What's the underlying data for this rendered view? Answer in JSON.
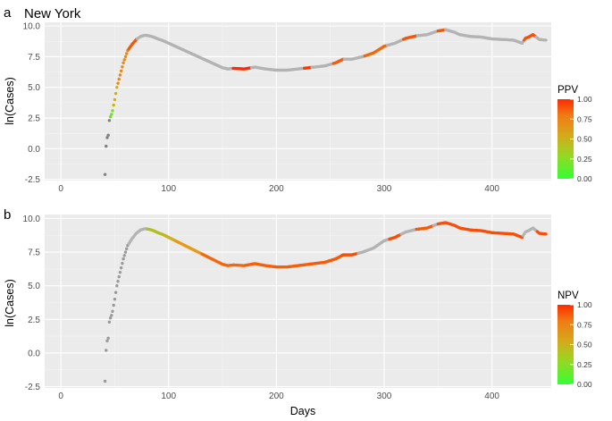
{
  "figure": {
    "title": "New York",
    "xlabel": "Days"
  },
  "colors": {
    "panel_bg": "#ebebeb",
    "grid_major": "#ffffff",
    "grid_minor": "#f4f4f4",
    "neutral": "#b3b3b3",
    "neutral_dark": "#808080",
    "scale_low": "#33ff33",
    "scale_mid": "#e6a51a",
    "scale_high": "#ff2a00"
  },
  "chart_data": [
    {
      "type": "scatter",
      "panel": "a",
      "ylabel": "ln(Cases)",
      "legend_title": "PPV",
      "legend_ticks": [
        "0.00",
        "0.25",
        "0.50",
        "0.75",
        "1.00"
      ],
      "xlim": [
        -15,
        455
      ],
      "ylim": [
        -2.6,
        10.3
      ],
      "xticks": [
        0,
        100,
        200,
        300,
        400
      ],
      "yticks": [
        -2.5,
        0.0,
        2.5,
        5.0,
        7.5,
        10.0
      ],
      "ytick_labels": [
        "-2.5",
        "0.0",
        "2.5",
        "5.0",
        "7.5",
        "10.0"
      ],
      "curve": [
        [
          41,
          -2.1
        ],
        [
          42,
          0.2
        ],
        [
          43,
          0.9
        ],
        [
          44,
          1.1
        ],
        [
          45,
          2.3
        ],
        [
          46,
          2.6
        ],
        [
          47,
          2.8
        ],
        [
          48,
          3.1
        ],
        [
          50,
          4.0
        ],
        [
          52,
          5.0
        ],
        [
          55,
          6.0
        ],
        [
          58,
          7.0
        ],
        [
          62,
          8.0
        ],
        [
          66,
          8.5
        ],
        [
          70,
          8.9
        ],
        [
          74,
          9.15
        ],
        [
          78,
          9.25
        ],
        [
          82,
          9.2
        ],
        [
          86,
          9.1
        ],
        [
          90,
          8.95
        ],
        [
          95,
          8.8
        ],
        [
          100,
          8.6
        ],
        [
          110,
          8.2
        ],
        [
          120,
          7.8
        ],
        [
          130,
          7.4
        ],
        [
          140,
          7.0
        ],
        [
          150,
          6.6
        ],
        [
          155,
          6.5
        ],
        [
          160,
          6.55
        ],
        [
          170,
          6.5
        ],
        [
          180,
          6.65
        ],
        [
          190,
          6.5
        ],
        [
          200,
          6.4
        ],
        [
          210,
          6.4
        ],
        [
          220,
          6.5
        ],
        [
          230,
          6.6
        ],
        [
          240,
          6.7
        ],
        [
          245,
          6.75
        ],
        [
          255,
          7.0
        ],
        [
          262,
          7.3
        ],
        [
          270,
          7.3
        ],
        [
          280,
          7.5
        ],
        [
          290,
          7.8
        ],
        [
          300,
          8.35
        ],
        [
          310,
          8.6
        ],
        [
          320,
          9.0
        ],
        [
          330,
          9.2
        ],
        [
          340,
          9.3
        ],
        [
          350,
          9.6
        ],
        [
          357,
          9.7
        ],
        [
          365,
          9.5
        ],
        [
          370,
          9.3
        ],
        [
          380,
          9.15
        ],
        [
          390,
          9.1
        ],
        [
          400,
          8.95
        ],
        [
          410,
          8.9
        ],
        [
          420,
          8.85
        ],
        [
          428,
          8.6
        ],
        [
          431,
          9.0
        ],
        [
          434,
          9.1
        ],
        [
          438,
          9.3
        ],
        [
          444,
          8.9
        ],
        [
          450,
          8.85
        ]
      ],
      "colored_segments": [
        {
          "from": 41,
          "to": 45,
          "value": null,
          "dark": true
        },
        {
          "from": 45,
          "to": 48,
          "value": 0.2
        },
        {
          "from": 48,
          "to": 52,
          "value": 0.45
        },
        {
          "from": 52,
          "to": 62,
          "value": 0.62
        },
        {
          "from": 62,
          "to": 70,
          "value": 0.82
        },
        {
          "from": 160,
          "to": 176,
          "value": 1.0
        },
        {
          "from": 226,
          "to": 232,
          "value": 0.95
        },
        {
          "from": 253,
          "to": 262,
          "value": 0.8
        },
        {
          "from": 282,
          "to": 302,
          "value": 0.75
        },
        {
          "from": 318,
          "to": 330,
          "value": 0.82
        },
        {
          "from": 350,
          "to": 356,
          "value": 0.82
        },
        {
          "from": 430,
          "to": 440,
          "value": 0.85
        }
      ]
    },
    {
      "type": "scatter",
      "panel": "b",
      "ylabel": "ln(Cases)",
      "legend_title": "NPV",
      "legend_ticks": [
        "0.00",
        "0.25",
        "0.50",
        "0.75",
        "1.00"
      ],
      "xlim": [
        -15,
        455
      ],
      "ylim": [
        -2.6,
        10.3
      ],
      "xticks": [
        0,
        100,
        200,
        300,
        400
      ],
      "yticks": [
        -2.5,
        0.0,
        2.5,
        5.0,
        7.5,
        10.0
      ],
      "ytick_labels": [
        "-2.5",
        "0.0",
        "2.5",
        "5.0",
        "7.5",
        "10.0"
      ],
      "curve": [
        [
          41,
          -2.1
        ],
        [
          42,
          0.2
        ],
        [
          43,
          0.9
        ],
        [
          44,
          1.1
        ],
        [
          45,
          2.3
        ],
        [
          46,
          2.6
        ],
        [
          47,
          2.8
        ],
        [
          48,
          3.1
        ],
        [
          50,
          4.0
        ],
        [
          52,
          5.0
        ],
        [
          55,
          6.0
        ],
        [
          58,
          7.0
        ],
        [
          62,
          8.0
        ],
        [
          66,
          8.5
        ],
        [
          70,
          8.9
        ],
        [
          74,
          9.15
        ],
        [
          78,
          9.25
        ],
        [
          82,
          9.2
        ],
        [
          86,
          9.1
        ],
        [
          90,
          8.95
        ],
        [
          95,
          8.8
        ],
        [
          100,
          8.6
        ],
        [
          110,
          8.2
        ],
        [
          120,
          7.8
        ],
        [
          130,
          7.4
        ],
        [
          140,
          7.0
        ],
        [
          150,
          6.6
        ],
        [
          155,
          6.5
        ],
        [
          160,
          6.55
        ],
        [
          170,
          6.5
        ],
        [
          180,
          6.65
        ],
        [
          190,
          6.5
        ],
        [
          200,
          6.4
        ],
        [
          210,
          6.4
        ],
        [
          220,
          6.5
        ],
        [
          230,
          6.6
        ],
        [
          240,
          6.7
        ],
        [
          245,
          6.75
        ],
        [
          255,
          7.0
        ],
        [
          262,
          7.3
        ],
        [
          270,
          7.3
        ],
        [
          280,
          7.5
        ],
        [
          290,
          7.8
        ],
        [
          300,
          8.35
        ],
        [
          310,
          8.6
        ],
        [
          320,
          9.0
        ],
        [
          330,
          9.2
        ],
        [
          340,
          9.3
        ],
        [
          350,
          9.6
        ],
        [
          357,
          9.7
        ],
        [
          365,
          9.5
        ],
        [
          370,
          9.3
        ],
        [
          380,
          9.15
        ],
        [
          390,
          9.1
        ],
        [
          400,
          8.95
        ],
        [
          410,
          8.9
        ],
        [
          420,
          8.85
        ],
        [
          428,
          8.6
        ],
        [
          431,
          9.0
        ],
        [
          434,
          9.1
        ],
        [
          438,
          9.3
        ],
        [
          444,
          8.9
        ],
        [
          450,
          8.85
        ]
      ],
      "colored_segments": [
        {
          "from": 41,
          "to": 62,
          "value": null,
          "dark": false
        },
        {
          "from": 80,
          "to": 95,
          "value": 0.35
        },
        {
          "from": 95,
          "to": 105,
          "value": 0.42
        },
        {
          "from": 105,
          "to": 130,
          "value": 0.55
        },
        {
          "from": 130,
          "to": 170,
          "value": 0.75
        },
        {
          "from": 170,
          "to": 230,
          "value": 0.78
        },
        {
          "from": 230,
          "to": 260,
          "value": 0.8
        },
        {
          "from": 260,
          "to": 275,
          "value": 0.85
        },
        {
          "from": 305,
          "to": 315,
          "value": 0.85
        },
        {
          "from": 330,
          "to": 345,
          "value": 0.8
        },
        {
          "from": 350,
          "to": 428,
          "value": 0.85
        },
        {
          "from": 442,
          "to": 451,
          "value": 0.85
        }
      ]
    }
  ]
}
